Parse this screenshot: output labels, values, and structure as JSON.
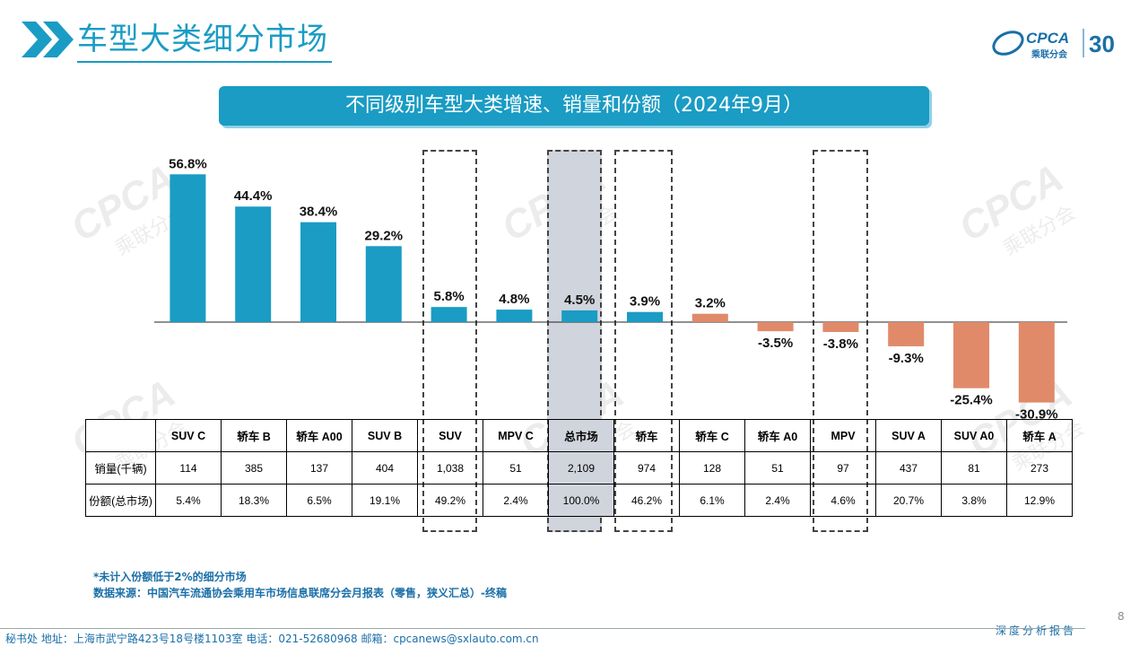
{
  "header": {
    "title": "车型大类细分市场",
    "logo_text": "CPCA",
    "logo_sub": "乘联分会",
    "logo_anniv": "30",
    "watermark_text": "CPCA",
    "watermark_sub": "乘联分会"
  },
  "chart_data": {
    "type": "bar",
    "title": "不同级别车型大类增速、销量和份额（2024年9月）",
    "categories": [
      "SUV C",
      "轿车 B",
      "轿车 A00",
      "SUV B",
      "SUV",
      "MPV C",
      "总市场",
      "轿车",
      "轿车 C",
      "轿车 A0",
      "MPV",
      "SUV A",
      "SUV A0",
      "轿车 A"
    ],
    "values": [
      56.8,
      44.4,
      38.4,
      29.2,
      5.8,
      4.8,
      4.5,
      3.9,
      3.2,
      -3.5,
      -3.8,
      -9.3,
      -25.4,
      -30.9
    ],
    "value_labels": [
      "56.8%",
      "44.4%",
      "38.4%",
      "29.2%",
      "5.8%",
      "4.8%",
      "4.5%",
      "3.9%",
      "3.2%",
      "-3.5%",
      "-3.8%",
      "-9.3%",
      "-25.4%",
      "-30.9%"
    ],
    "colors": [
      "#1a9cc4",
      "#1a9cc4",
      "#1a9cc4",
      "#1a9cc4",
      "#1a9cc4",
      "#1a9cc4",
      "#1a9cc4",
      "#1a9cc4",
      "#e08a6a",
      "#e08a6a",
      "#e08a6a",
      "#e08a6a",
      "#e08a6a",
      "#e08a6a"
    ],
    "ylim": [
      -31,
      57
    ],
    "xlabel": "",
    "ylabel": "",
    "grid": false
  },
  "table": {
    "row_labels": [
      "销量(千辆)",
      "份额(总市场)"
    ],
    "sales": [
      "114",
      "385",
      "137",
      "404",
      "1,038",
      "51",
      "2,109",
      "974",
      "128",
      "51",
      "97",
      "437",
      "81",
      "273"
    ],
    "shares": [
      "5.4%",
      "18.3%",
      "6.5%",
      "19.1%",
      "49.2%",
      "2.4%",
      "100.0%",
      "46.2%",
      "6.1%",
      "2.4%",
      "4.6%",
      "20.7%",
      "3.8%",
      "12.9%"
    ]
  },
  "notes": {
    "line1": "*未计入份额低于2%的细分市场",
    "line2": "数据来源：中国汽车流通协会乘用车市场信息联席分会月报表（零售，狭义汇总）-终稿"
  },
  "footer": {
    "text": "秘书处  地址：上海市武宁路423号18号楼1103室  电话：021-52680968  邮箱：cpcanews@sxlauto.com.cn",
    "right_label": "深度分析报告",
    "page_number": "8"
  },
  "colors": {
    "accent": "#1a9cc4",
    "negative": "#e08a6a",
    "highlight": "#d0d4dc",
    "note": "#1a6fa8"
  }
}
